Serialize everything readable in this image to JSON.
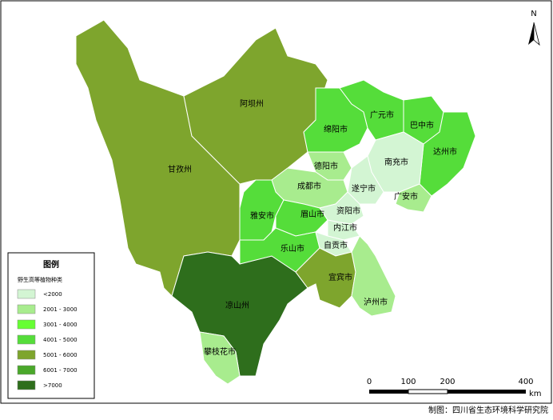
{
  "legend": {
    "title": "图例",
    "subtitle": "野生高等植物种类",
    "items": [
      {
        "label": "<2000",
        "color": "#d3f5d3"
      },
      {
        "label": "2001 - 3000",
        "color": "#a8ec8e"
      },
      {
        "label": "3001 - 4000",
        "color": "#66ff33"
      },
      {
        "label": "4001 - 5000",
        "color": "#55dd3a"
      },
      {
        "label": "5001 - 6000",
        "color": "#7ea52d"
      },
      {
        "label": "6001 - 7000",
        "color": "#4aa82a"
      },
      {
        "label": ">7000",
        "color": "#2e6e1c"
      }
    ]
  },
  "regions": [
    "阿坝州",
    "甘孜州",
    "凉山州",
    "攀枝花市",
    "绵阳市",
    "广元市",
    "巴中市",
    "达州市",
    "南充市",
    "德阳市",
    "成都市",
    "遂宁市",
    "广安市",
    "雅安市",
    "眉山市",
    "资阳市",
    "内江市",
    "乐山市",
    "自贡市",
    "宜宾市",
    "泸州市"
  ],
  "scale_bar": {
    "ticks": [
      "0",
      "100",
      "200",
      "400"
    ],
    "unit": "km"
  },
  "north": "N",
  "credit": "制图：四川省生态环境科学研究院"
}
